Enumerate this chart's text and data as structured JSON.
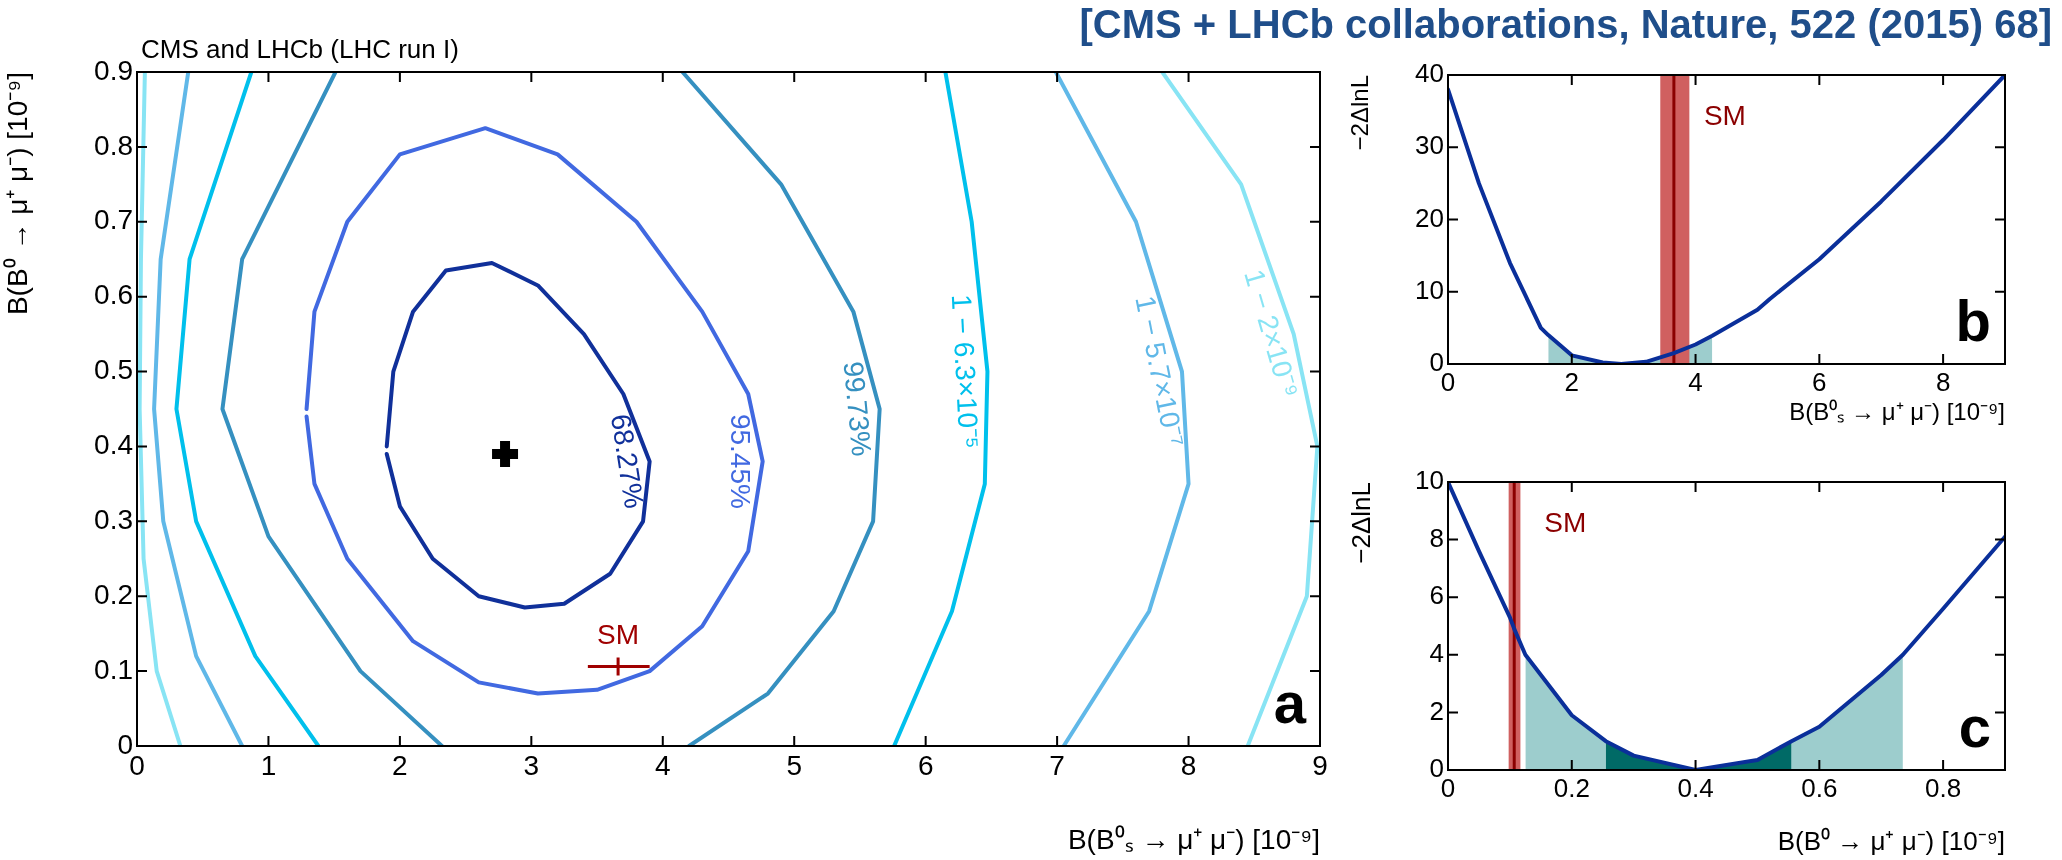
{
  "chart_data": [
    {
      "type": "line",
      "title": "[CMS + LHCb collaborations, Nature, 522 (2015) 68]",
      "subtitle": "CMS and LHCb (LHC run I)",
      "xlabel": "B(B⁰ₛ → μ⁺ μ⁻) [10⁻⁹]",
      "ylabel": "B(B⁰ → μ⁺ μ⁻) [10⁻⁹]",
      "xlim": [
        0,
        9
      ],
      "xticks": [
        0,
        1,
        2,
        3,
        4,
        5,
        6,
        7,
        8,
        9
      ],
      "ylim": [
        0,
        0.9
      ],
      "yticks": [
        0,
        0.1,
        0.2,
        0.3,
        0.4,
        0.5,
        0.6,
        0.7,
        0.8,
        0.9
      ],
      "series": [
        {
          "name": "68.27%",
          "color": "#10309a",
          "x": [
            1.9,
            1.95,
            2.1,
            2.35,
            2.7,
            3.05,
            3.4,
            3.7,
            3.9,
            3.85,
            3.6,
            3.25,
            2.95,
            2.6,
            2.25,
            2.0,
            1.9
          ],
          "values": [
            0.4,
            0.5,
            0.58,
            0.635,
            0.645,
            0.615,
            0.55,
            0.47,
            0.38,
            0.3,
            0.23,
            0.19,
            0.185,
            0.2,
            0.25,
            0.32,
            0.39
          ]
        },
        {
          "name": "95.45%",
          "color": "#4169e1",
          "x": [
            1.29,
            1.35,
            1.6,
            2.0,
            2.65,
            3.2,
            3.8,
            4.3,
            4.65,
            4.76,
            4.65,
            4.3,
            3.9,
            3.5,
            3.05,
            2.6,
            2.1,
            1.6,
            1.35,
            1.29
          ],
          "values": [
            0.45,
            0.58,
            0.7,
            0.79,
            0.825,
            0.79,
            0.7,
            0.58,
            0.47,
            0.38,
            0.26,
            0.16,
            0.1,
            0.075,
            0.07,
            0.085,
            0.14,
            0.25,
            0.35,
            0.44
          ]
        },
        {
          "color": "#3590c0",
          "x": [
            2.32,
            1.7,
            1.0,
            0.65,
            0.8,
            1.51
          ],
          "values": [
            0,
            0.1,
            0.28,
            0.45,
            0.65,
            0.9
          ]
        },
        {
          "name": "99.73%",
          "color": "#3590c0",
          "x": [
            4.15,
            4.9,
            5.45,
            5.65,
            5.6,
            5.3,
            4.8,
            4.2
          ],
          "values": [
            0.9,
            0.75,
            0.58,
            0.45,
            0.3,
            0.18,
            0.07,
            0
          ]
        },
        {
          "color": "#00c0ec",
          "x": [
            1.38,
            0.9,
            0.45,
            0.3,
            0.4,
            0.87
          ],
          "values": [
            0,
            0.12,
            0.3,
            0.45,
            0.65,
            0.9
          ]
        },
        {
          "name": "1 − 6.3×10⁻⁵",
          "color": "#00c0ec",
          "x": [
            6.15,
            6.35,
            6.47,
            6.45,
            6.2,
            5.76
          ],
          "values": [
            0.9,
            0.7,
            0.5,
            0.35,
            0.18,
            0
          ]
        },
        {
          "color": "#60b8e8",
          "x": [
            0.8,
            0.45,
            0.2,
            0.13,
            0.18,
            0.39
          ],
          "values": [
            0,
            0.12,
            0.3,
            0.45,
            0.65,
            0.9
          ]
        },
        {
          "name": "1 − 5.7×10⁻⁷",
          "color": "#60b8e8",
          "x": [
            6.99,
            7.6,
            7.95,
            8.0,
            7.7,
            7.05
          ],
          "values": [
            0.9,
            0.7,
            0.5,
            0.35,
            0.18,
            0
          ]
        },
        {
          "color": "#88e4f4",
          "x": [
            0.33,
            0.15,
            0.05,
            0.02,
            0.03,
            0.06
          ],
          "values": [
            0,
            0.1,
            0.25,
            0.45,
            0.65,
            0.9
          ]
        },
        {
          "name": "1 − 2×10⁻⁹",
          "color": "#88e4f4",
          "x": [
            7.8,
            8.4,
            8.8,
            8.98,
            8.9,
            8.45
          ],
          "values": [
            0.9,
            0.75,
            0.55,
            0.4,
            0.2,
            0
          ]
        },
        {
          "type": "scatter",
          "marker": "cross",
          "color": "#000000",
          "x": [
            2.8
          ],
          "values": [
            0.39
          ]
        },
        {
          "type": "scatter",
          "name": "SM",
          "marker": "cross",
          "color": "#a00000",
          "x": [
            3.66
          ],
          "values": [
            0.106
          ],
          "xerrors": [
            [
              3.43,
              3.9
            ]
          ]
        }
      ],
      "annotations": [
        "a"
      ]
    },
    {
      "type": "line",
      "xlabel": "B(B⁰ₛ → μ⁺ μ⁻) [10⁻⁹]",
      "ylabel": "−2ΔlnL",
      "xlim": [
        0,
        9
      ],
      "xticks": [
        0,
        2,
        4,
        6,
        8
      ],
      "ylim": [
        0,
        40
      ],
      "yticks": [
        0,
        10,
        20,
        30,
        40
      ],
      "series": [
        {
          "type": "area",
          "color": "#9dcdcd",
          "x": [
            1.62,
            2,
            2.5,
            2.8,
            3.2,
            4,
            4.27
          ],
          "values": [
            4,
            1.2,
            0.2,
            0,
            0.3,
            2.7,
            3.9
          ]
        },
        {
          "color": "#0a2f9a",
          "x": [
            0,
            0.5,
            1,
            1.5,
            1.62,
            2,
            2.5,
            2.8,
            3.2,
            3.65,
            4,
            4.27,
            5,
            5.2,
            6,
            7,
            8,
            9
          ],
          "values": [
            38,
            25,
            14,
            5,
            4,
            1.2,
            0.2,
            0,
            0.3,
            1.5,
            2.7,
            3.9,
            7.5,
            9,
            14.5,
            22.5,
            31,
            40
          ]
        }
      ],
      "bands": [
        {
          "axis": "x",
          "from": 3.43,
          "to": 3.9,
          "color": "#d06060"
        }
      ],
      "ref_lines": [
        {
          "axis": "x",
          "value": 3.65,
          "color": "#8b0000",
          "label": "SM"
        }
      ],
      "annotations": [
        "b"
      ]
    },
    {
      "type": "line",
      "xlabel": "B(B⁰ → μ⁺ μ⁻) [10⁻⁹]",
      "ylabel": "−2ΔlnL",
      "xlim": [
        0,
        0.9
      ],
      "xticks": [
        0,
        0.2,
        0.4,
        0.6,
        0.8
      ],
      "ylim": [
        0,
        10
      ],
      "yticks": [
        0,
        2,
        4,
        6,
        8,
        10
      ],
      "series": [
        {
          "type": "area",
          "color": "#9dcdcd",
          "x": [
            0.125,
            0.2,
            0.255,
            0.3,
            0.4,
            0.5,
            0.555,
            0.6,
            0.7,
            0.735
          ],
          "values": [
            4,
            1.9,
            1,
            0.5,
            0,
            0.35,
            1,
            1.5,
            3.3,
            4
          ]
        },
        {
          "type": "area",
          "color": "#006a66",
          "x": [
            0.255,
            0.3,
            0.4,
            0.5,
            0.555
          ],
          "values": [
            1,
            0.5,
            0,
            0.35,
            1
          ]
        },
        {
          "color": "#0a2f9a",
          "x": [
            0,
            0.05,
            0.1,
            0.107,
            0.125,
            0.2,
            0.255,
            0.3,
            0.4,
            0.5,
            0.555,
            0.6,
            0.7,
            0.735,
            0.8,
            0.9
          ],
          "values": [
            10,
            7.6,
            5.3,
            4.9,
            4,
            1.9,
            1,
            0.5,
            0,
            0.35,
            1,
            1.5,
            3.3,
            4,
            5.6,
            8.1
          ]
        }
      ],
      "bands": [
        {
          "axis": "x",
          "from": 0.098,
          "to": 0.117,
          "color": "#d06060"
        }
      ],
      "ref_lines": [
        {
          "axis": "x",
          "value": 0.107,
          "color": "#8b0000",
          "label": "SM"
        }
      ],
      "annotations": [
        "c"
      ]
    }
  ]
}
